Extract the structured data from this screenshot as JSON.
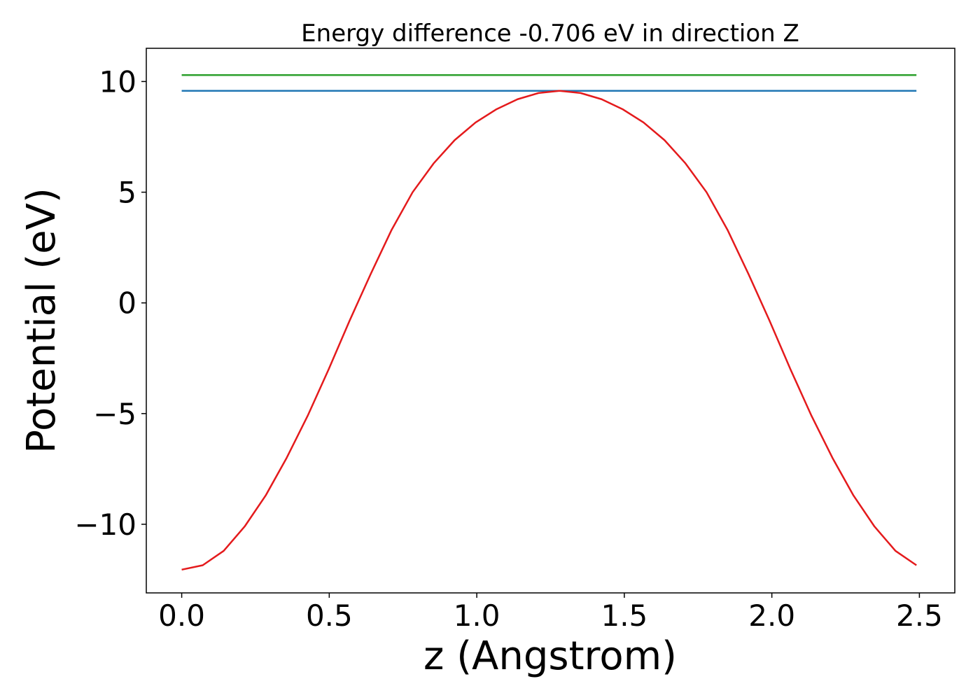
{
  "chart_data": {
    "type": "line",
    "title": "Energy difference -0.706 eV in direction Z",
    "xlabel": "z (Angstrom)",
    "ylabel": "Potential (eV)",
    "xlim": [
      -0.12,
      2.62
    ],
    "ylim": [
      -13.1,
      11.5
    ],
    "xticks": [
      0.0,
      0.5,
      1.0,
      1.5,
      2.0,
      2.5
    ],
    "xtick_labels": [
      "0.0",
      "0.5",
      "1.0",
      "1.5",
      "2.0",
      "2.5"
    ],
    "yticks": [
      -10,
      -5,
      0,
      5,
      10
    ],
    "ytick_labels": [
      "−10",
      "−5",
      "0",
      "5",
      "10"
    ],
    "grid": false,
    "series": [
      {
        "color": "#2ca02c",
        "x": [
          0.0,
          2.49
        ],
        "y": [
          10.29,
          10.29
        ]
      },
      {
        "color": "#1f77b4",
        "x": [
          0.0,
          2.49
        ],
        "y": [
          9.58,
          9.58
        ]
      },
      {
        "color": "#e41a1c",
        "x": [
          0.0,
          0.0712,
          0.1423,
          0.2134,
          0.2846,
          0.3557,
          0.4269,
          0.498,
          0.5691,
          0.6403,
          0.7114,
          0.7826,
          0.8537,
          0.9249,
          0.996,
          1.0671,
          1.1383,
          1.2094,
          1.2806,
          1.3517,
          1.4229,
          1.494,
          1.5651,
          1.6363,
          1.7074,
          1.7786,
          1.8497,
          1.9209,
          1.992,
          2.0631,
          2.1343,
          2.2054,
          2.2766,
          2.3477,
          2.4189,
          2.49
        ],
        "y": [
          -12.05,
          -11.85,
          -11.2,
          -10.1,
          -8.7,
          -7.0,
          -5.1,
          -3.0,
          -0.8,
          1.3,
          3.3,
          5.0,
          6.3,
          7.35,
          8.15,
          8.75,
          9.2,
          9.48,
          9.58,
          9.48,
          9.2,
          8.75,
          8.15,
          7.35,
          6.3,
          5.0,
          3.3,
          1.3,
          -0.8,
          -3.0,
          -5.1,
          -7.0,
          -8.7,
          -10.1,
          -11.2,
          -11.85
        ]
      }
    ]
  }
}
